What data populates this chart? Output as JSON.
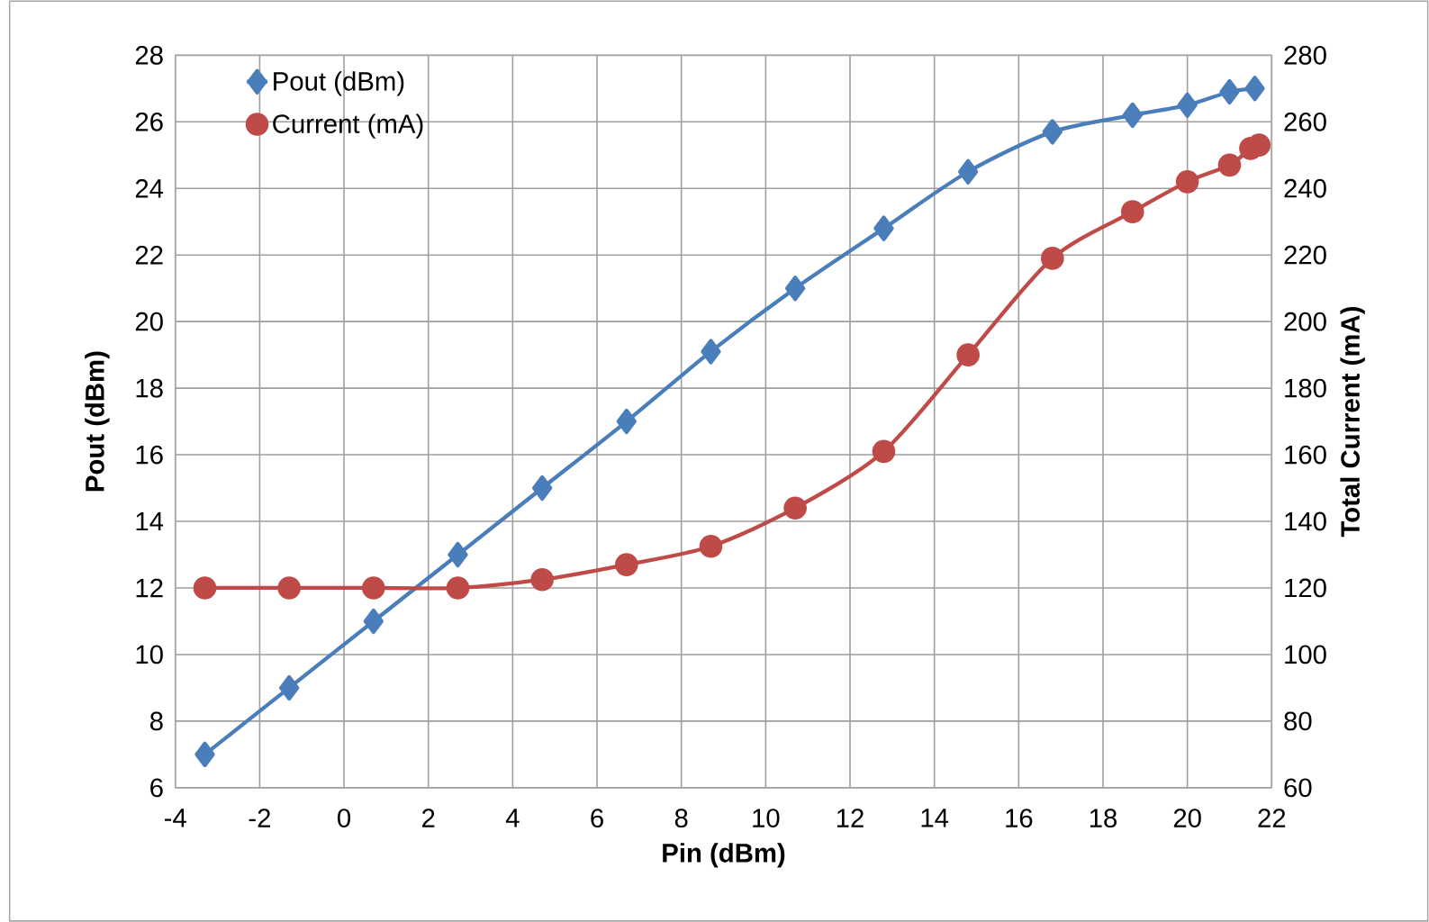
{
  "chart_data": {
    "type": "line",
    "xlabel": "Pin (dBm)",
    "ylabel": "Pout (dBm)",
    "y2label": "Total Current (mA)",
    "x": [
      -3.3,
      -1.3,
      0.7,
      2.7,
      4.7,
      6.7,
      8.7,
      10.7,
      12.8,
      14.8,
      16.8,
      18.7,
      20.0,
      21.0,
      21.6
    ],
    "series": [
      {
        "name": "Pout (dBm)",
        "color": "#4a7ebb",
        "marker": "diamond",
        "values": [
          7.0,
          9.0,
          11.0,
          13.0,
          15.0,
          17.0,
          19.1,
          21.0,
          22.8,
          24.5,
          25.7,
          26.2,
          26.5,
          26.9,
          27.0
        ]
      },
      {
        "name": "Current (mA)",
        "color": "#be4b48",
        "marker": "circle",
        "axis": "y2",
        "x": [
          -3.3,
          -1.3,
          0.7,
          2.7,
          4.7,
          6.7,
          8.7,
          10.7,
          12.8,
          14.8,
          16.8,
          18.7,
          20.0,
          21.0,
          21.5,
          21.7
        ],
        "values": [
          120,
          120,
          120,
          120,
          122.5,
          127,
          132.5,
          144,
          161,
          190,
          219,
          233,
          242,
          247,
          252,
          253
        ]
      }
    ],
    "xlim": [
      -4,
      22
    ],
    "xticks": [
      -4,
      -2,
      0,
      2,
      4,
      6,
      8,
      10,
      12,
      14,
      16,
      18,
      20,
      22
    ],
    "ylim": [
      6,
      28
    ],
    "yticks": [
      6,
      8,
      10,
      12,
      14,
      16,
      18,
      20,
      22,
      24,
      26,
      28
    ],
    "y2lim": [
      60,
      280
    ],
    "y2ticks": [
      60,
      80,
      100,
      120,
      140,
      160,
      180,
      200,
      220,
      240,
      260,
      280
    ],
    "grid": true,
    "legend": "top left",
    "line_style": "solid"
  }
}
